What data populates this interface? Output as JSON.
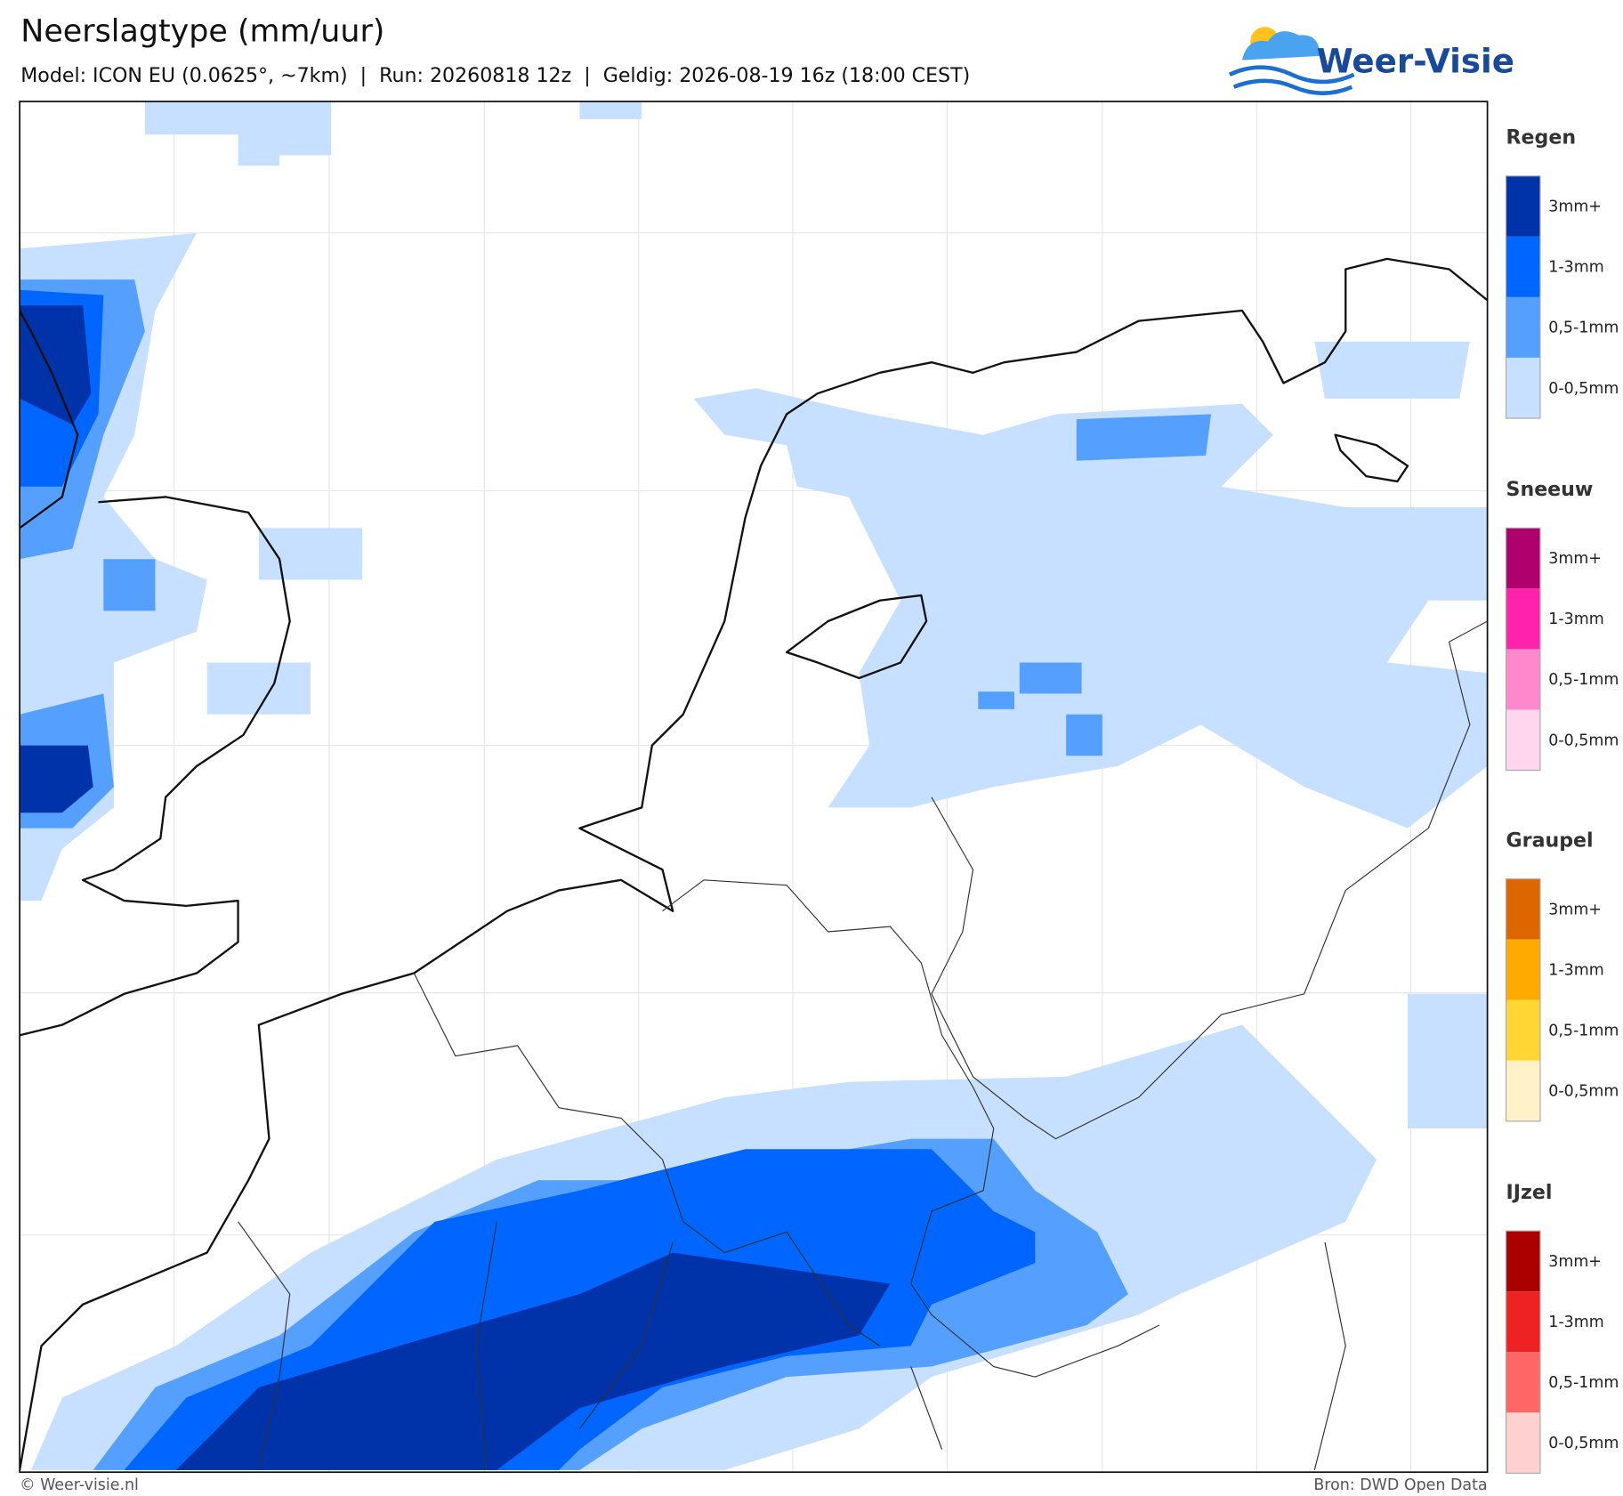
{
  "header": {
    "title": "Neerslagtype (mm/uur)",
    "subtitle": "Model: ICON EU (0.0625°, ~7km)  |  Run: 20260818 12z  |  Geldig: 2026-08-19 16z (18:00 CEST)"
  },
  "logo": {
    "text": "Weer-Visie"
  },
  "legend": [
    {
      "title": "Regen",
      "items": [
        {
          "label": "3mm+",
          "color": "#0033aa"
        },
        {
          "label": "1-3mm",
          "color": "#0066ff"
        },
        {
          "label": "0,5-1mm",
          "color": "#55a0ff"
        },
        {
          "label": "0-0,5mm",
          "color": "#c8e0ff"
        }
      ]
    },
    {
      "title": "Sneeuw",
      "items": [
        {
          "label": "3mm+",
          "color": "#b0006e"
        },
        {
          "label": "1-3mm",
          "color": "#ff22aa"
        },
        {
          "label": "0,5-1mm",
          "color": "#ff88cc"
        },
        {
          "label": "0-0,5mm",
          "color": "#ffd6ee"
        }
      ]
    },
    {
      "title": "Graupel",
      "items": [
        {
          "label": "3mm+",
          "color": "#dd6600"
        },
        {
          "label": "1-3mm",
          "color": "#ffaa00"
        },
        {
          "label": "0,5-1mm",
          "color": "#ffd633"
        },
        {
          "label": "0-0,5mm",
          "color": "#fff2c8"
        }
      ]
    },
    {
      "title": "IJzel",
      "items": [
        {
          "label": "3mm+",
          "color": "#aa0000"
        },
        {
          "label": "1-3mm",
          "color": "#ee2222"
        },
        {
          "label": "0,5-1mm",
          "color": "#ff6666"
        },
        {
          "label": "0-0,5mm",
          "color": "#ffd0d0"
        }
      ]
    }
  ],
  "footer": {
    "left": "© Weer-visie.nl",
    "right": "Bron: DWD Open Data"
  }
}
